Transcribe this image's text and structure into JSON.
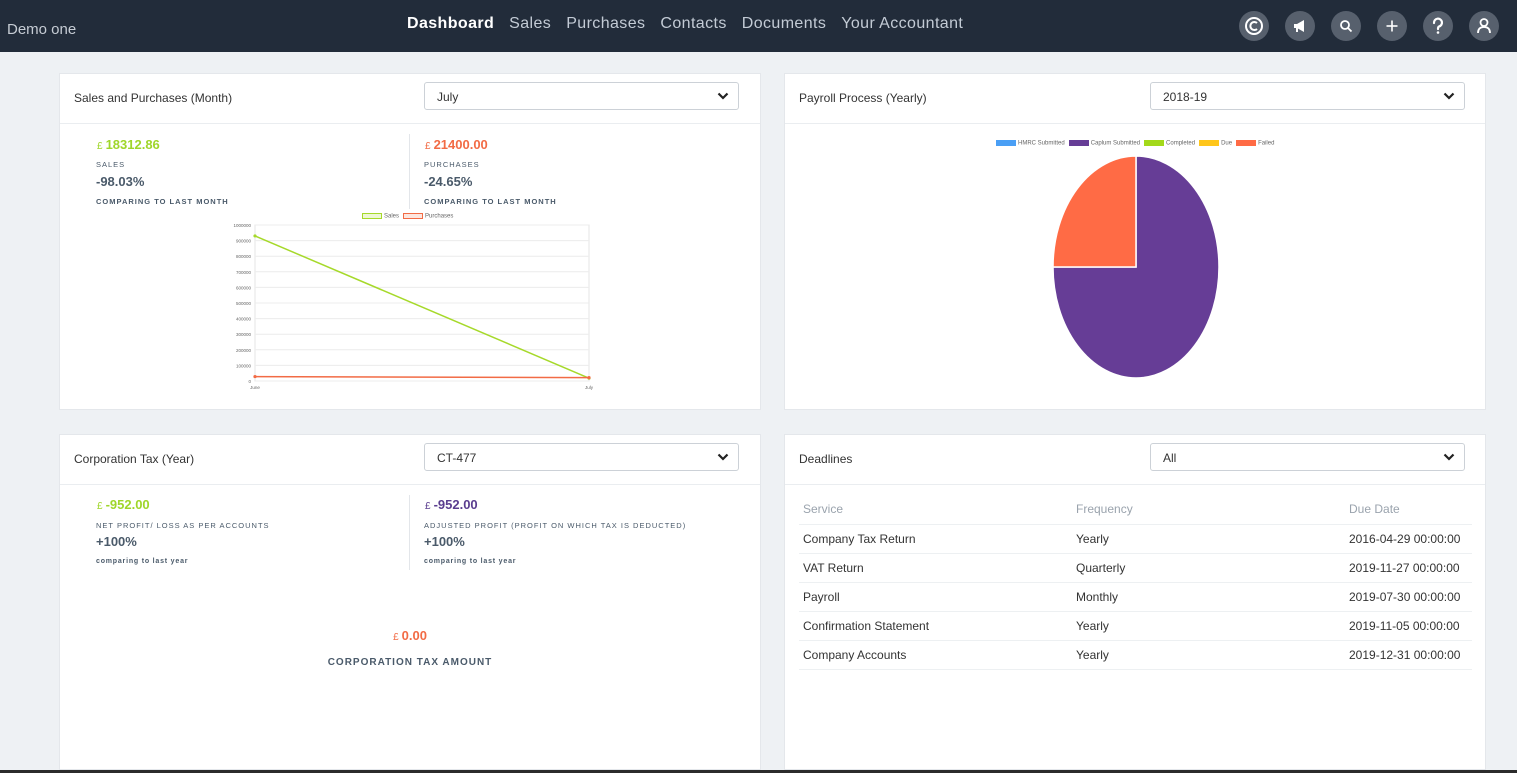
{
  "app": {
    "brand": "Demo one",
    "nav": [
      "Dashboard",
      "Sales",
      "Purchases",
      "Contacts",
      "Documents",
      "Your Accountant"
    ],
    "icons": [
      "logo-c-icon",
      "megaphone-icon",
      "search-icon",
      "plus-icon",
      "help-icon",
      "user-icon"
    ]
  },
  "sales_purchases": {
    "title": "Sales and Purchases (Month)",
    "selected": "July",
    "sales": {
      "currency": "£",
      "amount": "18312.86",
      "label": "SALES",
      "change": "-98.03%",
      "compare": "COMPARING TO LAST MONTH",
      "color": "#9fd62a"
    },
    "purchases": {
      "currency": "£",
      "amount": "21400.00",
      "label": "PURCHASES",
      "change": "-24.65%",
      "compare": "COMPARING TO LAST MONTH",
      "color": "#f26b45"
    }
  },
  "payroll": {
    "title": "Payroll Process (Yearly)",
    "selected": "2018-19"
  },
  "corp_tax": {
    "title": "Corporation Tax (Year)",
    "selected": "CT-477",
    "net": {
      "currency": "£",
      "amount": "-952.00",
      "label": "NET PROFIT/ LOSS AS PER ACCOUNTS",
      "change": "+100%",
      "compare": "comparing to last year"
    },
    "adjusted": {
      "currency": "£",
      "amount": "-952.00",
      "label": "ADJUSTED PROFIT (PROFIT ON WHICH TAX IS DEDUCTED)",
      "change": "+100%",
      "compare": "comparing to last year"
    },
    "tax": {
      "currency": "£",
      "amount": "0.00",
      "label": "CORPORATION TAX AMOUNT"
    }
  },
  "deadlines": {
    "title": "Deadlines",
    "selected": "All",
    "headers": [
      "Service",
      "Frequency",
      "Due Date"
    ],
    "rows": [
      [
        "Company Tax Return",
        "Yearly",
        "2016-04-29 00:00:00"
      ],
      [
        "VAT Return",
        "Quarterly",
        "2019-11-27 00:00:00"
      ],
      [
        "Payroll",
        "Monthly",
        "2019-07-30 00:00:00"
      ],
      [
        "Confirmation Statement",
        "Yearly",
        "2019-11-05 00:00:00"
      ],
      [
        "Company Accounts",
        "Yearly",
        "2019-12-31 00:00:00"
      ]
    ]
  },
  "chart_data": [
    {
      "type": "line",
      "categories": [
        "June",
        "July"
      ],
      "series": [
        {
          "name": "Sales",
          "values": [
            930000,
            18312.86
          ],
          "color": "#a6d92a"
        },
        {
          "name": "Purchases",
          "values": [
            28400,
            21400
          ],
          "color": "#f26b45"
        }
      ],
      "ylim": [
        0,
        1000000
      ],
      "yticks": [
        0,
        100000,
        200000,
        300000,
        400000,
        500000,
        600000,
        700000,
        800000,
        900000,
        1000000
      ],
      "title": "",
      "xlabel": "",
      "ylabel": ""
    },
    {
      "type": "pie",
      "labels": [
        "HMRC Submitted",
        "Caplum Submitted",
        "Completed",
        "Due",
        "Failed"
      ],
      "values": [
        0,
        3,
        0,
        0,
        1
      ],
      "colors": [
        "#4a9ff5",
        "#663d96",
        "#a3d91a",
        "#ffc61a",
        "#ff6b45"
      ],
      "title": ""
    }
  ]
}
